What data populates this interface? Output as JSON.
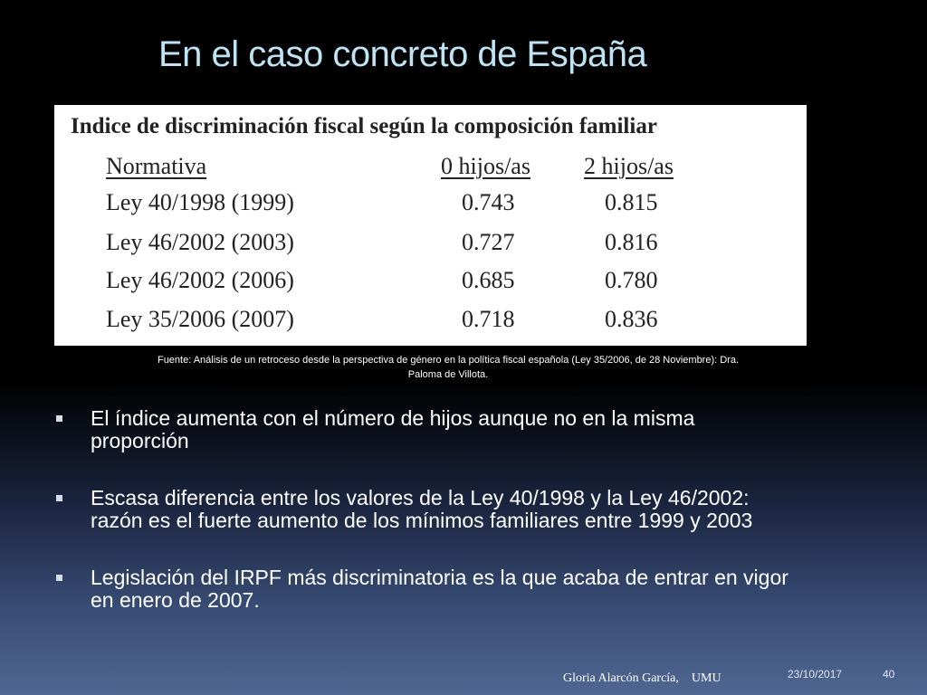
{
  "slide": {
    "title": "En el caso concreto de España"
  },
  "table": {
    "title": "Indice de discriminación fiscal según la composición familiar",
    "headers": [
      "Normativa",
      "0 hijos/as",
      "2 hijos/as"
    ],
    "rows": [
      [
        "Ley 40/1998 (1999)",
        "0.743",
        "0.815"
      ],
      [
        "Ley 46/2002 (2003)",
        "0.727",
        "0.816"
      ],
      [
        "Ley 46/2002 (2006)",
        "0.685",
        "0.780"
      ],
      [
        "Ley 35/2006 (2007)",
        "0.718",
        "0.836"
      ]
    ]
  },
  "source": {
    "line1": "Fuente: Análisis de un retroceso desde la perspectiva de género en la política fiscal española (Ley 35/2006, de 28 Noviembre): Dra.",
    "line2": "Paloma de Villota."
  },
  "bullets": [
    {
      "line1": "El índice aumenta con el número de hijos aunque no en la misma",
      "line2": "proporción"
    },
    {
      "line1": "Escasa diferencia entre los valores de la Ley 40/1998 y la Ley 46/2002:",
      "line2": "razón es el fuerte aumento de los mínimos familiares entre 1999 y 2003"
    },
    {
      "line1": "Legislación del IRPF más discriminatoria es la que acaba de entrar en vigor",
      "line2": "en enero de 2007."
    }
  ],
  "footer": {
    "author": "Gloria Alarcón García,    UMU",
    "date": "23/10/2017",
    "page": "40"
  },
  "colors": {
    "title": "#bfe3f3",
    "background_top": "#000000",
    "background_bottom": "#4f6792"
  }
}
